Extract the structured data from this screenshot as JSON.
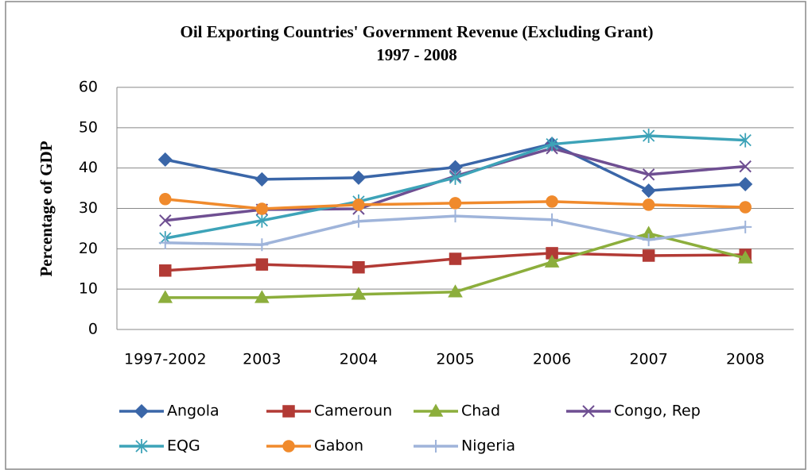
{
  "chart_data": {
    "type": "line",
    "title": "Oil Exporting Countries' Government Revenue (Excluding Grant)",
    "subtitle": "1997 - 2008",
    "y_label": "Percentage of GDP",
    "categories": [
      "1997-2002",
      "2003",
      "2004",
      "2005",
      "2006",
      "2007",
      "2008"
    ],
    "ylim": [
      0,
      60
    ],
    "yticks": [
      0,
      10,
      20,
      30,
      40,
      50,
      60
    ],
    "grid": true,
    "series": [
      {
        "name": "Angola",
        "color": "#3a66a8",
        "marker": "diamond",
        "values": [
          42.1,
          37.2,
          37.6,
          40.2,
          46,
          34.4,
          36
        ]
      },
      {
        "name": "Cameroun",
        "color": "#b23a35",
        "marker": "square",
        "values": [
          14.6,
          16.1,
          15.4,
          17.5,
          18.9,
          18.3,
          18.5
        ]
      },
      {
        "name": "Chad",
        "color": "#8cae3c",
        "marker": "triangle",
        "values": [
          7.9,
          7.9,
          8.7,
          9.3,
          16.7,
          23.8,
          17.7
        ]
      },
      {
        "name": "Congo, Rep",
        "color": "#6f4f92",
        "marker": "x",
        "values": [
          27,
          29.7,
          29.9,
          38,
          44.9,
          38.4,
          40.4
        ]
      },
      {
        "name": "EQG",
        "color": "#3da3b8",
        "marker": "star",
        "values": [
          22.6,
          27,
          31.7,
          37.6,
          45.9,
          48,
          46.9
        ]
      },
      {
        "name": "Gabon",
        "color": "#f08a2c",
        "marker": "circle",
        "values": [
          32.3,
          29.9,
          30.9,
          31.3,
          31.7,
          30.9,
          30.3
        ]
      },
      {
        "name": "Nigeria",
        "color": "#9fb4da",
        "marker": "plus",
        "values": [
          21.5,
          21,
          26.8,
          28.1,
          27.2,
          22.2,
          25.4
        ]
      }
    ]
  }
}
